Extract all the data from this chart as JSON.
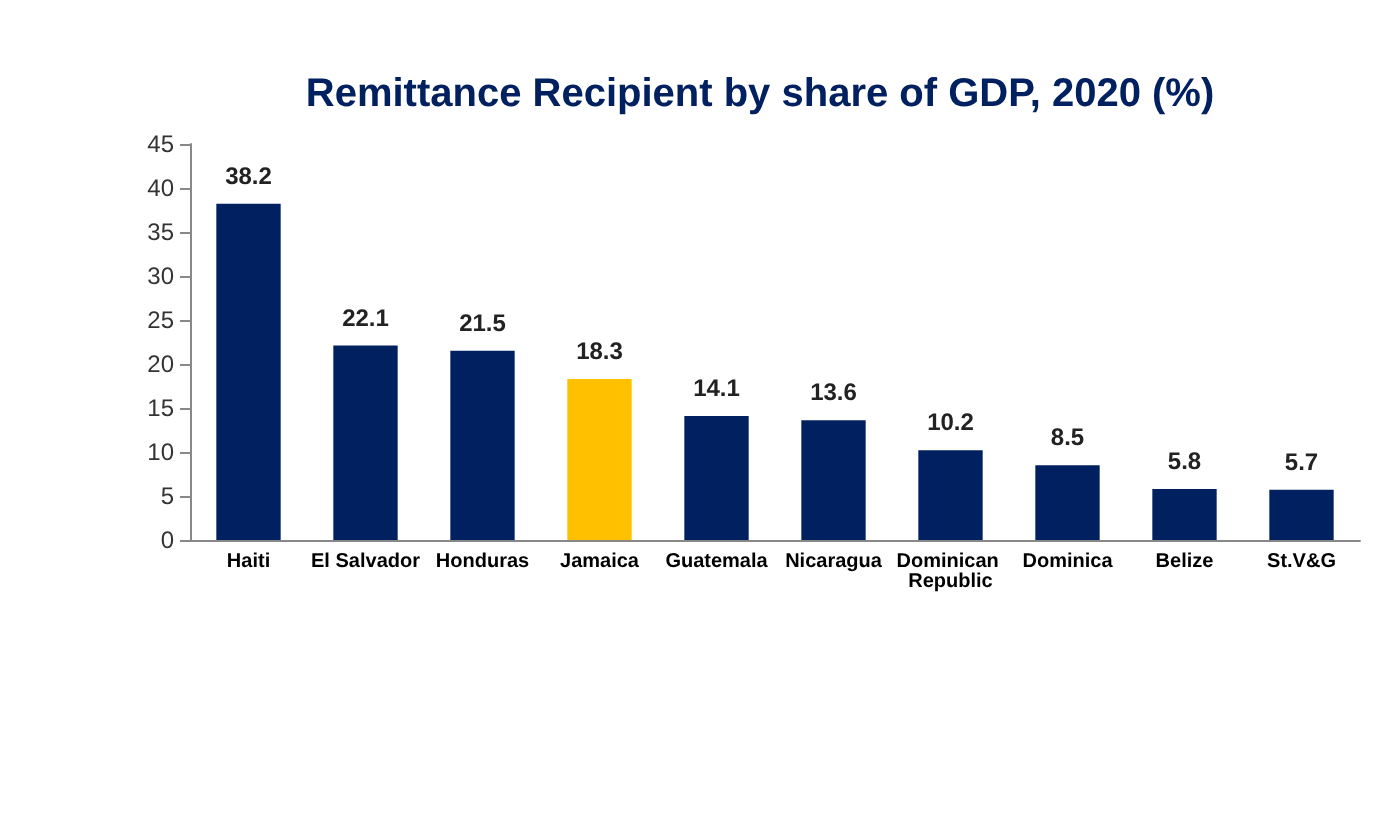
{
  "chart_data": {
    "type": "bar",
    "title": "Remittance Recipient by share of GDP, 2020 (%)",
    "categories": [
      "Haiti",
      "El Salvador",
      "Honduras",
      "Jamaica",
      "Guatemala",
      "Nicaragua",
      "Dominican Republic",
      "Dominica",
      "Belize",
      "St.V&G"
    ],
    "values": [
      38.2,
      22.1,
      21.5,
      18.3,
      14.1,
      13.6,
      10.2,
      8.5,
      5.8,
      5.7
    ],
    "colors": [
      "#002060",
      "#002060",
      "#002060",
      "#ffc000",
      "#002060",
      "#002060",
      "#002060",
      "#002060",
      "#002060",
      "#002060"
    ],
    "ylim": [
      0,
      45
    ],
    "yticks": [
      0,
      5,
      10,
      15,
      20,
      25,
      30,
      35,
      40,
      45
    ],
    "grid": false,
    "data_labels": true
  }
}
